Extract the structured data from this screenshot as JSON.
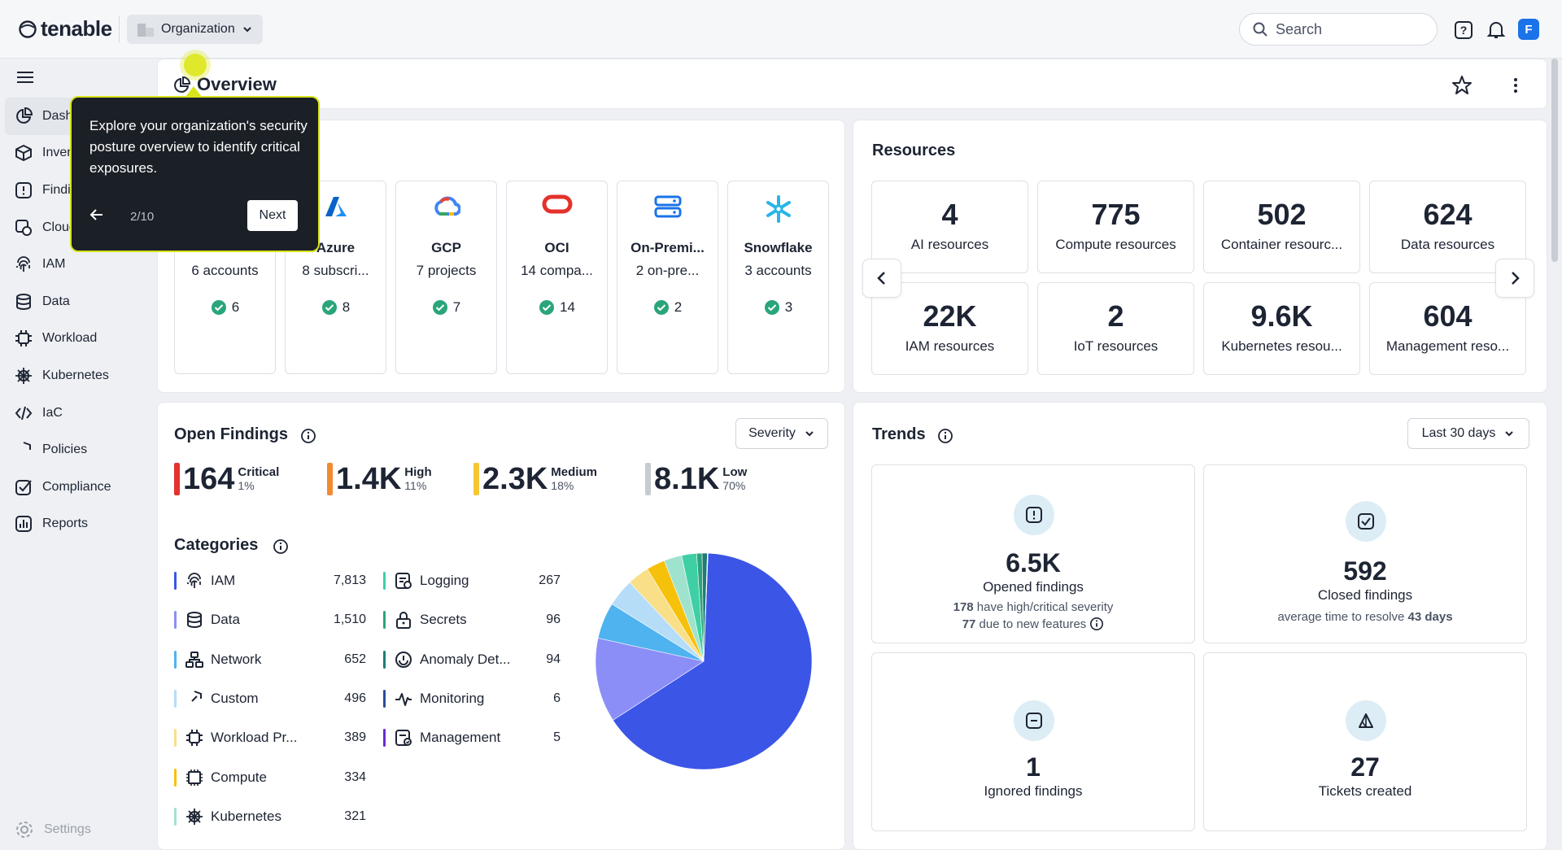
{
  "header": {
    "brand": "tenable",
    "org_label": "Organization",
    "search_placeholder": "Search",
    "avatar_initial": "F"
  },
  "sidebar": {
    "items": [
      {
        "label": "Dashboards",
        "icon": "pie-chart-icon"
      },
      {
        "label": "Inventory",
        "icon": "cube-icon"
      },
      {
        "label": "Findings",
        "icon": "alert-square-icon"
      },
      {
        "label": "Cloud",
        "icon": "cloud-icon"
      },
      {
        "label": "IAM",
        "icon": "fingerprint-icon"
      },
      {
        "label": "Data",
        "icon": "database-icon"
      },
      {
        "label": "Workload",
        "icon": "chip-icon"
      },
      {
        "label": "Kubernetes",
        "icon": "helm-icon"
      },
      {
        "label": "IaC",
        "icon": "code-icon"
      },
      {
        "label": "Policies",
        "icon": "shield-icon"
      },
      {
        "label": "Compliance",
        "icon": "checkbox-icon"
      },
      {
        "label": "Reports",
        "icon": "report-icon"
      }
    ],
    "settings_label": "Settings"
  },
  "overview": {
    "title": "Overview"
  },
  "accounts": [
    {
      "name": "",
      "sub": "6 accounts",
      "count": "6"
    },
    {
      "name": "Azure",
      "sub": "8 subscri...",
      "count": "8"
    },
    {
      "name": "GCP",
      "sub": "7 projects",
      "count": "7"
    },
    {
      "name": "OCI",
      "sub": "14 compa...",
      "count": "14"
    },
    {
      "name": "On-Premi...",
      "sub": "2 on-pre...",
      "count": "2"
    },
    {
      "name": "Snowflake",
      "sub": "3 accounts",
      "count": "3"
    }
  ],
  "resources": {
    "title": "Resources",
    "items": [
      {
        "value": "4",
        "label": "AI resources"
      },
      {
        "value": "775",
        "label": "Compute resources"
      },
      {
        "value": "502",
        "label": "Container resourc..."
      },
      {
        "value": "624",
        "label": "Data resources"
      },
      {
        "value": "22K",
        "label": "IAM resources"
      },
      {
        "value": "2",
        "label": "IoT resources"
      },
      {
        "value": "9.6K",
        "label": "Kubernetes resou..."
      },
      {
        "value": "604",
        "label": "Management reso..."
      }
    ]
  },
  "open_findings": {
    "title": "Open Findings",
    "dropdown": "Severity",
    "severities": [
      {
        "value": "164",
        "label": "Critical",
        "pct": "1%",
        "color": "#e5322d"
      },
      {
        "value": "1.4K",
        "label": "High",
        "pct": "11%",
        "color": "#f28a30"
      },
      {
        "value": "2.3K",
        "label": "Medium",
        "pct": "18%",
        "color": "#f6c633"
      },
      {
        "value": "8.1K",
        "label": "Low",
        "pct": "70%",
        "color": "#c7cbd2"
      }
    ]
  },
  "categories": {
    "title": "Categories",
    "items": [
      {
        "name": "IAM",
        "value": "7,813",
        "color": "#3b55e6",
        "icon": "fingerprint-icon"
      },
      {
        "name": "Data",
        "value": "1,510",
        "color": "#8b8ef7",
        "icon": "database-icon"
      },
      {
        "name": "Network",
        "value": "652",
        "color": "#4fb3f0",
        "icon": "network-icon"
      },
      {
        "name": "Custom",
        "value": "496",
        "color": "#b6ddf8",
        "icon": "custom-shield-icon"
      },
      {
        "name": "Workload Pr...",
        "value": "389",
        "color": "#f8df88",
        "icon": "chip-icon"
      },
      {
        "name": "Compute",
        "value": "334",
        "color": "#f6c10a",
        "icon": "cpu-icon"
      },
      {
        "name": "Kubernetes",
        "value": "321",
        "color": "#9fe3cf",
        "icon": "helm-icon"
      },
      {
        "name": "Logging",
        "value": "267",
        "color": "#3fcfa5",
        "icon": "logging-icon"
      },
      {
        "name": "Secrets",
        "value": "96",
        "color": "#2aa57a",
        "icon": "lock-icon"
      },
      {
        "name": "Anomaly Det...",
        "value": "94",
        "color": "#1f7c7a",
        "icon": "anomaly-icon"
      },
      {
        "name": "Monitoring",
        "value": "6",
        "color": "#2b4d9a",
        "icon": "pulse-icon"
      },
      {
        "name": "Management",
        "value": "5",
        "color": "#6a2bd1",
        "icon": "management-icon"
      }
    ]
  },
  "chart_data": {
    "type": "pie",
    "categories": [
      "IAM",
      "Data",
      "Network",
      "Custom",
      "Workload Pr...",
      "Compute",
      "Kubernetes",
      "Logging",
      "Secrets",
      "Anomaly Det...",
      "Monitoring",
      "Management"
    ],
    "values": [
      7813,
      1510,
      652,
      496,
      389,
      334,
      321,
      267,
      96,
      94,
      6,
      5
    ],
    "colors": [
      "#3b55e6",
      "#8b8ef7",
      "#4fb3f0",
      "#b6ddf8",
      "#f8df88",
      "#f6c10a",
      "#9fe3cf",
      "#3fcfa5",
      "#2aa57a",
      "#1f7c7a",
      "#2b4d9a",
      "#6a2bd1"
    ]
  },
  "trends": {
    "title": "Trends",
    "dropdown": "Last 30 days",
    "items": [
      {
        "value": "6.5K",
        "label": "Opened findings",
        "line1_strong": "178",
        "line1": " have high/critical severity",
        "line2_strong": "77",
        "line2": " due to new features"
      },
      {
        "value": "592",
        "label": "Closed findings",
        "line1": "average time to resolve ",
        "line1_strong": "43 days"
      },
      {
        "value": "1",
        "label": "Ignored findings"
      },
      {
        "value": "27",
        "label": "Tickets created"
      }
    ]
  },
  "tooltip": {
    "text": "Explore your organization's security posture overview to identify critical exposures.",
    "step": "2/10",
    "next": "Next"
  }
}
